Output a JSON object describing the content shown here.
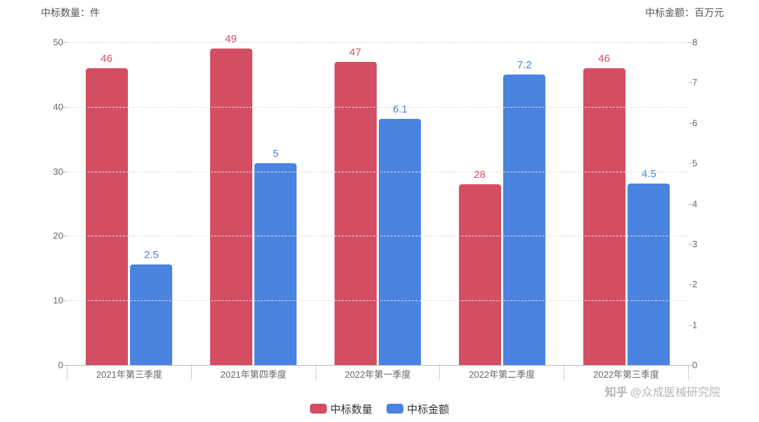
{
  "chart": {
    "type": "grouped-bar-dual-axis",
    "background_color": "#ffffff",
    "grid_color": "#dddddd",
    "axis_line_color": "#bbbbbb",
    "font_family": "Microsoft YaHei",
    "tick_fontsize": 13,
    "label_fontsize": 15,
    "bar_border_radius": 4,
    "bar_width_pct": 34,
    "bar_gap_pct": 2,
    "left_axis": {
      "title": "中标数量：件",
      "ylim": [
        0,
        50
      ],
      "tick_step": 10,
      "ticks": [
        0,
        10,
        20,
        30,
        40,
        50
      ]
    },
    "right_axis": {
      "title": "中标金额：百万元",
      "ylim": [
        0,
        8
      ],
      "tick_step": 1,
      "ticks": [
        0,
        1,
        2,
        3,
        4,
        5,
        6,
        7,
        8
      ]
    },
    "categories": [
      "2021年第三季度",
      "2021年第四季度",
      "2022年第一季度",
      "2022年第二季度",
      "2022年第三季度"
    ],
    "series": [
      {
        "name": "中标数量",
        "axis": "left",
        "color": "#d44e63",
        "label_color": "#d44e63",
        "values": [
          46,
          49,
          47,
          28,
          46
        ],
        "value_labels": [
          "46",
          "49",
          "47",
          "28",
          "46"
        ]
      },
      {
        "name": "中标金额",
        "axis": "right",
        "color": "#4a83e0",
        "label_color": "#4a83e0",
        "values": [
          2.5,
          5,
          6.1,
          7.2,
          4.5
        ],
        "value_labels": [
          "2.5",
          "5",
          "6.1",
          "7.2",
          "4.5"
        ]
      }
    ],
    "legend": {
      "position": "bottom-center",
      "items": [
        "中标数量",
        "中标金额"
      ]
    },
    "watermark": {
      "brand": "知乎",
      "text": "@众成医械研究院",
      "color": "rgba(120,120,120,0.55)"
    }
  }
}
